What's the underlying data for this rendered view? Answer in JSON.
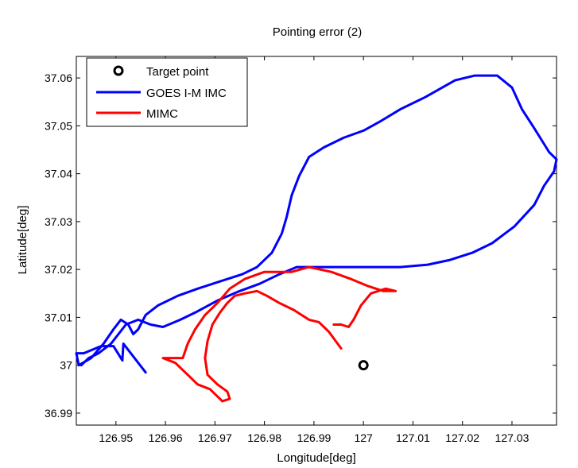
{
  "chart_data": {
    "type": "line",
    "title": "Pointing error (2)",
    "xlabel": "Longitude[deg]",
    "ylabel": "Latitude[deg]",
    "xlim": [
      126.942,
      127.039
    ],
    "ylim": [
      36.9875,
      37.0645
    ],
    "xticks": [
      126.95,
      126.96,
      126.97,
      126.98,
      126.99,
      127.0,
      127.01,
      127.02,
      127.03
    ],
    "xtick_labels": [
      "126.95",
      "126.96",
      "126.97",
      "126.98",
      "126.99",
      "127",
      "127.01",
      "127.02",
      "127.03"
    ],
    "yticks": [
      36.99,
      37.0,
      37.01,
      37.02,
      37.03,
      37.04,
      37.05,
      37.06
    ],
    "ytick_labels": [
      "36.99",
      "37",
      "37.01",
      "37.02",
      "37.03",
      "37.04",
      "37.05",
      "37.06"
    ],
    "grid": false,
    "legend_position": "top-left",
    "series": [
      {
        "name": "Target point",
        "kind": "marker",
        "color": "#000000",
        "points": [
          [
            127.0,
            37.0
          ]
        ]
      },
      {
        "name": "GOES I-M IMC",
        "kind": "line",
        "color": "#0000ff",
        "points": [
          [
            126.956,
            36.9985
          ],
          [
            126.9515,
            37.0045
          ],
          [
            126.9513,
            37.001
          ],
          [
            126.9495,
            37.004
          ],
          [
            126.947,
            37.004
          ],
          [
            126.9435,
            37.0025
          ],
          [
            126.942,
            37.0025
          ],
          [
            126.9425,
            37.0
          ],
          [
            126.945,
            37.0015
          ],
          [
            126.9475,
            37.0045
          ],
          [
            126.9495,
            37.0075
          ],
          [
            126.951,
            37.0095
          ],
          [
            126.9525,
            37.0085
          ],
          [
            126.9535,
            37.0065
          ],
          [
            126.9545,
            37.0075
          ],
          [
            126.956,
            37.0105
          ],
          [
            126.9585,
            37.0125
          ],
          [
            126.9625,
            37.0145
          ],
          [
            126.9665,
            37.016
          ],
          [
            126.971,
            37.0175
          ],
          [
            126.9755,
            37.019
          ],
          [
            126.9785,
            37.0205
          ],
          [
            126.9815,
            37.0235
          ],
          [
            126.9835,
            37.0275
          ],
          [
            126.9845,
            37.031
          ],
          [
            126.9855,
            37.0355
          ],
          [
            126.987,
            37.0395
          ],
          [
            126.989,
            37.0435
          ],
          [
            126.992,
            37.0455
          ],
          [
            126.996,
            37.0475
          ],
          [
            127.0,
            37.049
          ],
          [
            127.0035,
            37.051
          ],
          [
            127.0075,
            37.0535
          ],
          [
            127.0125,
            37.056
          ],
          [
            127.0185,
            37.0595
          ],
          [
            127.0225,
            37.0605
          ],
          [
            127.027,
            37.0605
          ],
          [
            127.03,
            37.058
          ],
          [
            127.032,
            37.0535
          ],
          [
            127.0345,
            37.0495
          ],
          [
            127.0375,
            37.0445
          ],
          [
            127.039,
            37.043
          ],
          [
            127.0385,
            37.0405
          ],
          [
            127.0365,
            37.0375
          ],
          [
            127.0345,
            37.0335
          ],
          [
            127.0305,
            37.029
          ],
          [
            127.026,
            37.0255
          ],
          [
            127.022,
            37.0235
          ],
          [
            127.0175,
            37.022
          ],
          [
            127.013,
            37.021
          ],
          [
            127.0075,
            37.0205
          ],
          [
            127.0,
            37.0205
          ],
          [
            126.994,
            37.0205
          ],
          [
            126.99,
            37.0205
          ],
          [
            126.9865,
            37.0205
          ],
          [
            126.983,
            37.019
          ],
          [
            126.979,
            37.017
          ],
          [
            126.975,
            37.0155
          ],
          [
            126.9705,
            37.0135
          ],
          [
            126.966,
            37.011
          ],
          [
            126.963,
            37.0095
          ],
          [
            126.9595,
            37.008
          ],
          [
            126.957,
            37.0085
          ],
          [
            126.9545,
            37.0095
          ],
          [
            126.952,
            37.0085
          ],
          [
            126.949,
            37.0045
          ],
          [
            126.9465,
            37.0025
          ],
          [
            126.9445,
            37.0015
          ],
          [
            126.943,
            37.0
          ]
        ]
      },
      {
        "name": "MIMC",
        "kind": "line",
        "color": "#ff0000",
        "points": [
          [
            126.9955,
            37.0035
          ],
          [
            126.993,
            37.007
          ],
          [
            126.991,
            37.009
          ],
          [
            126.989,
            37.0095
          ],
          [
            126.986,
            37.0115
          ],
          [
            126.983,
            37.013
          ],
          [
            126.9805,
            37.0145
          ],
          [
            126.9785,
            37.0155
          ],
          [
            126.976,
            37.015
          ],
          [
            126.974,
            37.0145
          ],
          [
            126.9725,
            37.013
          ],
          [
            126.971,
            37.011
          ],
          [
            126.9695,
            37.0085
          ],
          [
            126.9685,
            37.005
          ],
          [
            126.968,
            37.0015
          ],
          [
            126.9685,
            36.998
          ],
          [
            126.9705,
            36.996
          ],
          [
            126.9725,
            36.9945
          ],
          [
            126.973,
            36.993
          ],
          [
            126.9715,
            36.9925
          ],
          [
            126.969,
            36.995
          ],
          [
            126.9665,
            36.996
          ],
          [
            126.9645,
            36.998
          ],
          [
            126.962,
            37.0005
          ],
          [
            126.9595,
            37.0015
          ],
          [
            126.961,
            37.0015
          ],
          [
            126.9635,
            37.0015
          ],
          [
            126.9645,
            37.0045
          ],
          [
            126.966,
            37.0075
          ],
          [
            126.968,
            37.0105
          ],
          [
            126.9705,
            37.013
          ],
          [
            126.973,
            37.016
          ],
          [
            126.976,
            37.018
          ],
          [
            126.98,
            37.0195
          ],
          [
            126.9855,
            37.0195
          ],
          [
            126.989,
            37.0205
          ],
          [
            126.9935,
            37.0195
          ],
          [
            126.9975,
            37.018
          ],
          [
            127.001,
            37.0165
          ],
          [
            127.004,
            37.0155
          ],
          [
            127.0065,
            37.0155
          ],
          [
            127.0045,
            37.016
          ],
          [
            127.0015,
            37.015
          ],
          [
            126.9995,
            37.0125
          ],
          [
            126.998,
            37.0095
          ],
          [
            126.997,
            37.008
          ],
          [
            126.9955,
            37.0085
          ],
          [
            126.994,
            37.0085
          ]
        ]
      }
    ]
  }
}
